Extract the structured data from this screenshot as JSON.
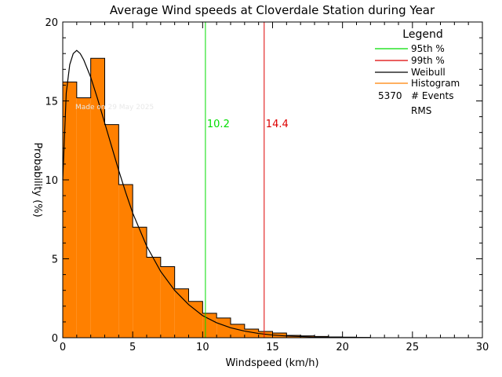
{
  "chart_data": {
    "type": "bar",
    "title": "Average Wind speeds at Cloverdale Station during Year",
    "xlabel": "Windspeed (km/h)",
    "ylabel": "Probability (%)",
    "xlim": [
      0,
      30
    ],
    "ylim": [
      0,
      20
    ],
    "x_ticks": [
      "0",
      "5",
      "10",
      "15",
      "20",
      "25",
      "30"
    ],
    "y_ticks": [
      "0",
      "5",
      "10",
      "15",
      "20"
    ],
    "histogram": {
      "name": "Histogram",
      "bin_width": 1,
      "bin_starts": [
        0,
        1,
        2,
        3,
        4,
        5,
        6,
        7,
        8,
        9,
        10,
        11,
        12,
        13,
        14,
        15,
        16,
        17,
        18,
        19,
        20,
        21
      ],
      "values": [
        16.2,
        15.2,
        17.7,
        13.5,
        9.7,
        7.0,
        5.1,
        4.5,
        3.1,
        2.3,
        1.55,
        1.25,
        0.85,
        0.55,
        0.4,
        0.3,
        0.15,
        0.12,
        0.08,
        0.05,
        0.04,
        0.02
      ],
      "fill_color": "#ff8000"
    },
    "weibull_curve": {
      "name": "Weibull",
      "x": [
        0,
        0.25,
        0.5,
        0.75,
        1.0,
        1.25,
        1.5,
        2,
        2.5,
        3,
        3.5,
        4,
        4.5,
        5,
        6,
        7,
        8,
        9,
        10,
        11,
        12,
        13,
        14,
        15,
        16,
        18,
        20,
        22
      ],
      "y": [
        10.0,
        15.5,
        17.3,
        18.0,
        18.2,
        18.0,
        17.6,
        16.5,
        15.1,
        13.6,
        12.1,
        10.6,
        9.2,
        7.9,
        5.8,
        4.2,
        3.0,
        2.1,
        1.4,
        0.95,
        0.63,
        0.42,
        0.27,
        0.17,
        0.11,
        0.04,
        0.015,
        0.004
      ],
      "color": "#000000"
    },
    "percentile_lines": [
      {
        "name": "95th %",
        "x": 10.2,
        "label": "10.2",
        "color": "#00dd00"
      },
      {
        "name": "99th %",
        "x": 14.4,
        "label": "14.4",
        "color": "#dd0000"
      }
    ],
    "legend": {
      "title": "Legend",
      "placement": "top-right",
      "entries": [
        {
          "label": "95th %",
          "color": "#00dd00"
        },
        {
          "label": "99th %",
          "color": "#dd0000"
        },
        {
          "label": "Weibull",
          "color": "#000000"
        },
        {
          "label": "Histogram",
          "color": "#ff8000"
        }
      ],
      "events_count": "5370",
      "events_label": "# Events",
      "rms_label": "RMS"
    },
    "annotation": "Made on 29 May 2025"
  }
}
